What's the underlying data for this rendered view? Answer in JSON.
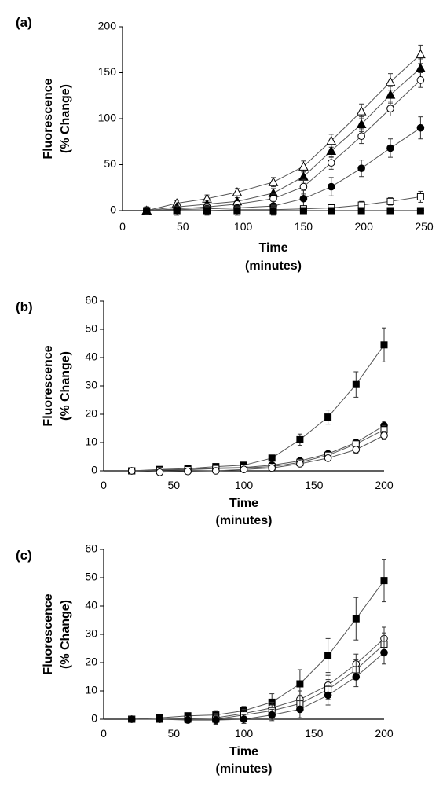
{
  "chart_data": [
    {
      "panel_label": "(a)",
      "type": "line",
      "xlabel": [
        "Time",
        "(minutes)"
      ],
      "ylabel": [
        "Fluorescence",
        "(% Change)"
      ],
      "xlim": [
        0,
        250
      ],
      "ylim": [
        0,
        200
      ],
      "x_ticks": [
        0,
        50,
        100,
        150,
        200,
        250
      ],
      "y_ticks": [
        0,
        50,
        100,
        150,
        200
      ],
      "grid": false,
      "x": [
        20,
        45,
        70,
        95,
        125,
        150,
        173,
        198,
        222,
        247
      ],
      "series": [
        {
          "marker": "triangle-open",
          "values": [
            0,
            8,
            13,
            20,
            31,
            48,
            76,
            108,
            140,
            170
          ],
          "errors": [
            4,
            3,
            4,
            4,
            5,
            6,
            7,
            8,
            9,
            10
          ]
        },
        {
          "marker": "triangle-filled",
          "values": [
            0,
            4,
            7,
            10,
            19,
            37,
            65,
            94,
            126,
            155
          ],
          "errors": [
            4,
            3,
            4,
            4,
            5,
            6,
            7,
            8,
            9,
            10
          ]
        },
        {
          "marker": "circle-open",
          "values": [
            0,
            2,
            4,
            7,
            13,
            26,
            52,
            81,
            111,
            142
          ],
          "errors": [
            4,
            3,
            4,
            4,
            5,
            8,
            7,
            8,
            8,
            8
          ]
        },
        {
          "marker": "circle-filled",
          "values": [
            0,
            1,
            2,
            3,
            5,
            13,
            26,
            46,
            68,
            90
          ],
          "errors": [
            4,
            3,
            4,
            4,
            5,
            9,
            10,
            9,
            10,
            12
          ]
        },
        {
          "marker": "square-open",
          "values": [
            0,
            0,
            0,
            1,
            1,
            2,
            3,
            6,
            10,
            15
          ],
          "errors": [
            4,
            3,
            4,
            4,
            5,
            3,
            3,
            4,
            4,
            6
          ]
        },
        {
          "marker": "square-filled",
          "values": [
            0,
            0,
            0,
            0,
            0,
            0,
            0,
            0,
            0,
            0
          ],
          "errors": [
            4,
            5,
            5,
            5,
            5,
            2,
            2,
            2,
            2,
            2
          ]
        }
      ]
    },
    {
      "panel_label": "(b)",
      "type": "line",
      "xlabel": [
        "Time",
        "(minutes)"
      ],
      "ylabel": [
        "Fluorescence",
        "(% Change)"
      ],
      "xlim": [
        0,
        200
      ],
      "ylim": [
        0,
        60
      ],
      "x_ticks": [
        0,
        50,
        100,
        150,
        200
      ],
      "y_ticks": [
        0,
        10,
        20,
        30,
        40,
        50,
        60
      ],
      "grid": false,
      "x": [
        20,
        40,
        60,
        80,
        100,
        120,
        140,
        160,
        180,
        200
      ],
      "series": [
        {
          "marker": "square-filled",
          "values": [
            0,
            0.5,
            0.8,
            1.5,
            2,
            4.5,
            11,
            19,
            30.5,
            44.5
          ],
          "errors": [
            0.3,
            0.4,
            0.5,
            0.8,
            0.8,
            0.9,
            2,
            2.5,
            4.5,
            6
          ]
        },
        {
          "marker": "circle-filled",
          "values": [
            0,
            0.3,
            0.5,
            1,
            1.2,
            2,
            3.5,
            6,
            10,
            16
          ],
          "errors": [
            0.3,
            0.4,
            0.5,
            0.5,
            0.6,
            0.6,
            0.8,
            0.8,
            1.2,
            1.5
          ]
        },
        {
          "marker": "square-open",
          "values": [
            0,
            0.2,
            0.4,
            0.8,
            1,
            1.5,
            3,
            5.5,
            9.5,
            14.5
          ],
          "errors": [
            0.3,
            0.4,
            0.5,
            0.5,
            0.6,
            0.6,
            0.8,
            0.8,
            1.2,
            1.5
          ]
        },
        {
          "marker": "circle-open",
          "values": [
            0,
            -0.5,
            -0.2,
            0,
            0.5,
            1,
            2.5,
            4.5,
            7.5,
            12.5
          ],
          "errors": [
            0.3,
            0.4,
            0.5,
            0.5,
            0.6,
            0.6,
            0.8,
            0.8,
            1.2,
            1.5
          ]
        }
      ]
    },
    {
      "panel_label": "(c)",
      "type": "line",
      "xlabel": [
        "Time",
        "(minutes)"
      ],
      "ylabel": [
        "Fluorescence",
        "(% Change)"
      ],
      "xlim": [
        0,
        200
      ],
      "ylim": [
        0,
        60
      ],
      "x_ticks": [
        0,
        50,
        100,
        150,
        200
      ],
      "y_ticks": [
        0,
        10,
        20,
        30,
        40,
        50,
        60
      ],
      "grid": false,
      "x": [
        20,
        40,
        60,
        80,
        100,
        120,
        140,
        160,
        180,
        200
      ],
      "series": [
        {
          "marker": "square-filled",
          "values": [
            0,
            0.5,
            1.2,
            1.5,
            3,
            6,
            12.5,
            22.5,
            35.5,
            49
          ],
          "errors": [
            0.4,
            0.8,
            1,
            1.5,
            1.5,
            3,
            5,
            6,
            7.5,
            7.5
          ]
        },
        {
          "marker": "circle-open",
          "values": [
            0,
            0,
            0.2,
            0.5,
            2,
            4,
            7,
            12,
            19.5,
            28.5
          ],
          "errors": [
            0.4,
            0.8,
            1,
            1.5,
            1.5,
            2,
            3,
            3.5,
            3.5,
            4
          ]
        },
        {
          "marker": "square-open",
          "values": [
            0,
            0,
            0,
            0,
            1.5,
            3,
            5.5,
            10.5,
            17.5,
            26.5
          ],
          "errors": [
            0.4,
            0.8,
            1,
            1.5,
            1.5,
            2,
            3,
            3.5,
            3.5,
            4
          ]
        },
        {
          "marker": "circle-filled",
          "values": [
            0,
            0,
            -0.3,
            -0.3,
            0,
            1.5,
            3.5,
            8.5,
            15,
            23.5
          ],
          "errors": [
            0.4,
            0.8,
            1,
            1.5,
            1.5,
            2,
            3,
            3.5,
            3.5,
            4
          ]
        }
      ]
    }
  ]
}
